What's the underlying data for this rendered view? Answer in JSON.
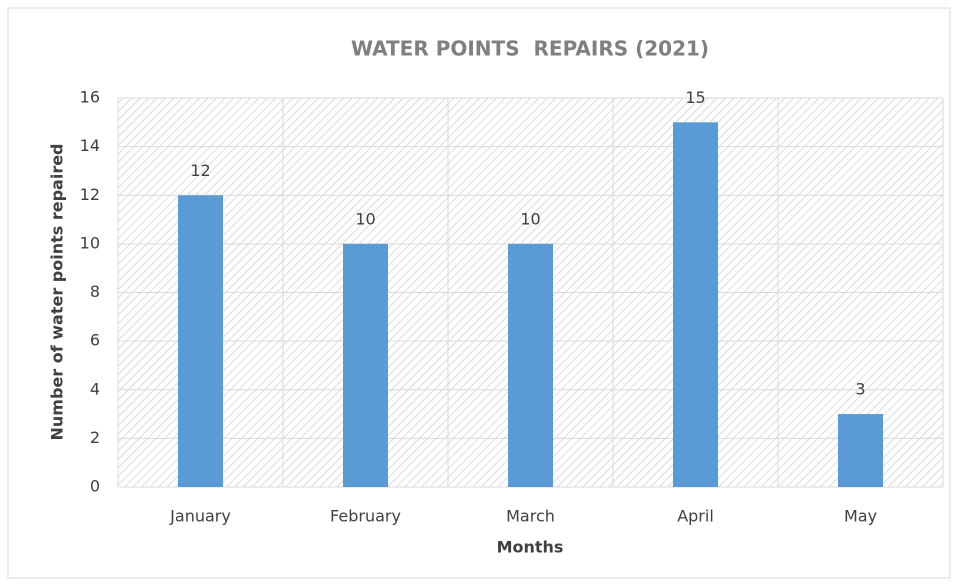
{
  "chart_data": {
    "type": "bar",
    "title": "WATER POINTS  REPAIRS (2021)",
    "x_label": "Months",
    "y_label": "Number of water points repaired",
    "categories": [
      "January",
      "February",
      "March",
      "April",
      "May"
    ],
    "values": [
      12,
      10,
      10,
      15,
      3
    ],
    "color": "#5b9bd5",
    "ylim": [
      0,
      16
    ],
    "yticks": [
      0,
      2,
      4,
      6,
      8,
      10,
      12,
      14,
      16
    ],
    "grid": true
  }
}
